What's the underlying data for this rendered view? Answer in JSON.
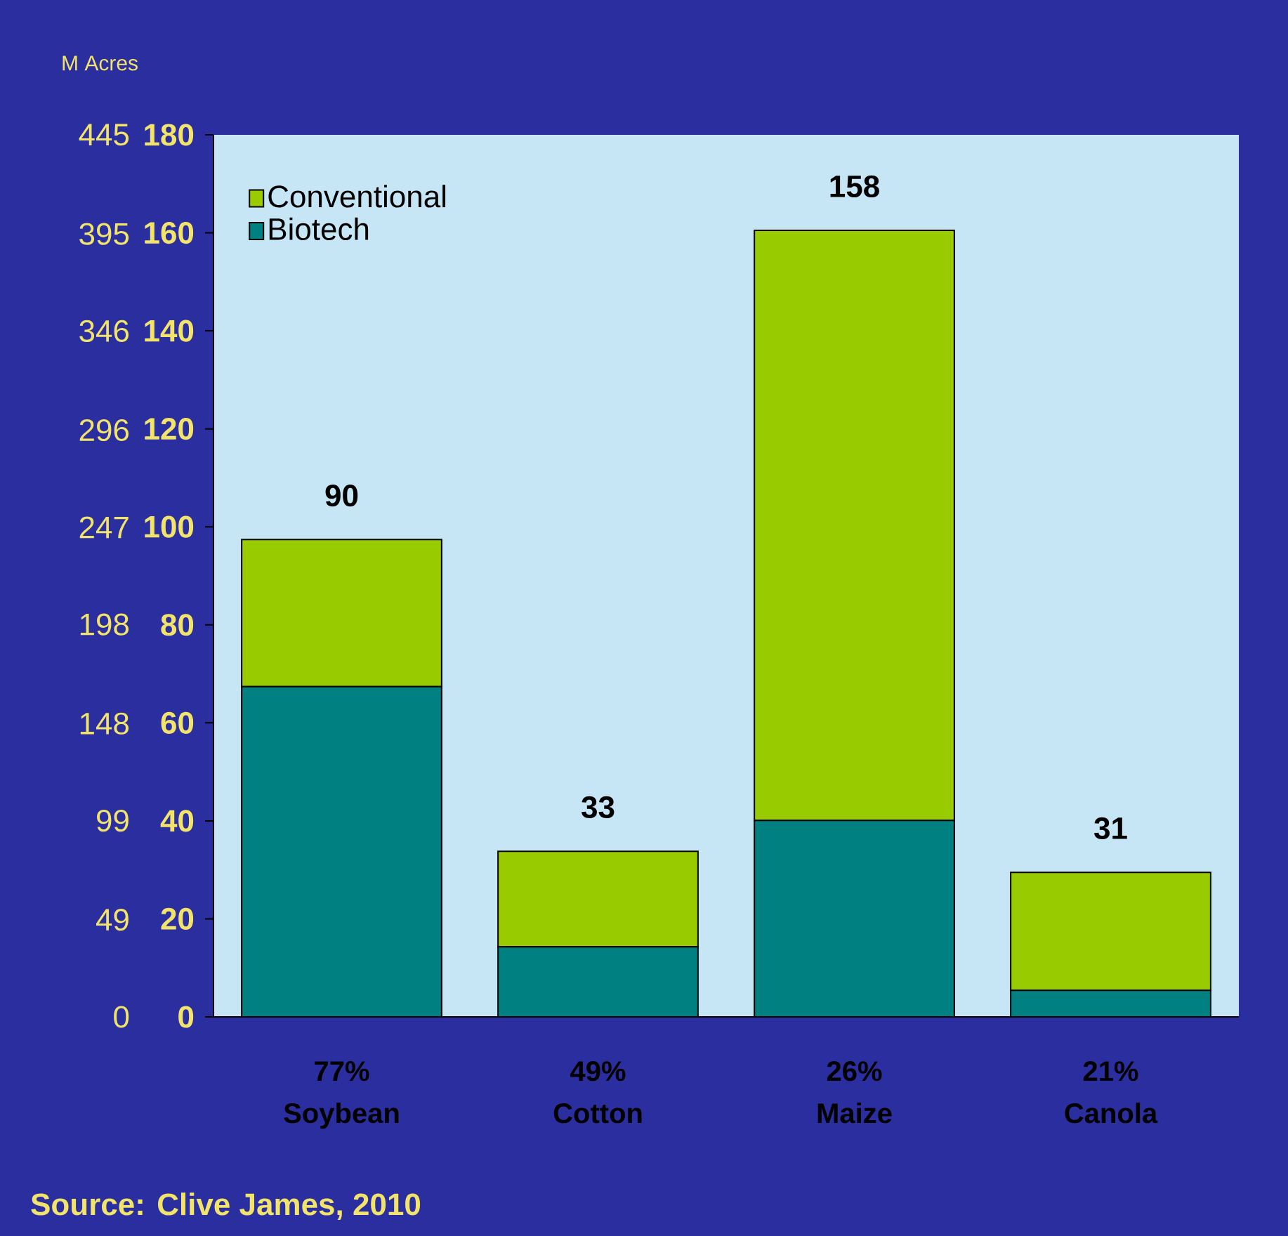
{
  "chart_data": {
    "type": "bar",
    "stacked": true,
    "categories": [
      "77% Soybean",
      "49% Cotton",
      "26% Maize",
      "21% Canola"
    ],
    "series": [
      {
        "name": "Biotech",
        "color": "#008080",
        "values": [
          67.4,
          14.3,
          40.1,
          5.4
        ]
      },
      {
        "name": "Conventional",
        "color": "#99cc00",
        "values": [
          30.0,
          19.5,
          120.4,
          24.1
        ]
      }
    ],
    "ylim": [
      0,
      180
    ],
    "yticks": [
      0,
      20,
      40,
      60,
      80,
      100,
      120,
      140,
      160,
      180
    ],
    "y2lim": [
      0,
      445
    ],
    "y2ticks": [
      0,
      49,
      99,
      148,
      198,
      247,
      296,
      346,
      395,
      445
    ],
    "legend": "top left",
    "grid": false,
    "annotations": [
      {
        "text": "90",
        "x": "77% Soybean",
        "y": 97.4
      },
      {
        "text": "33",
        "x": "49% Cotton",
        "y": 33.8
      },
      {
        "text": "158",
        "x": "26% Maize",
        "y": 160.5
      },
      {
        "text": "31",
        "x": "21% Canola",
        "y": 29.5
      },
      "M Acres",
      "Source: Clive James, 2010"
    ]
  }
}
